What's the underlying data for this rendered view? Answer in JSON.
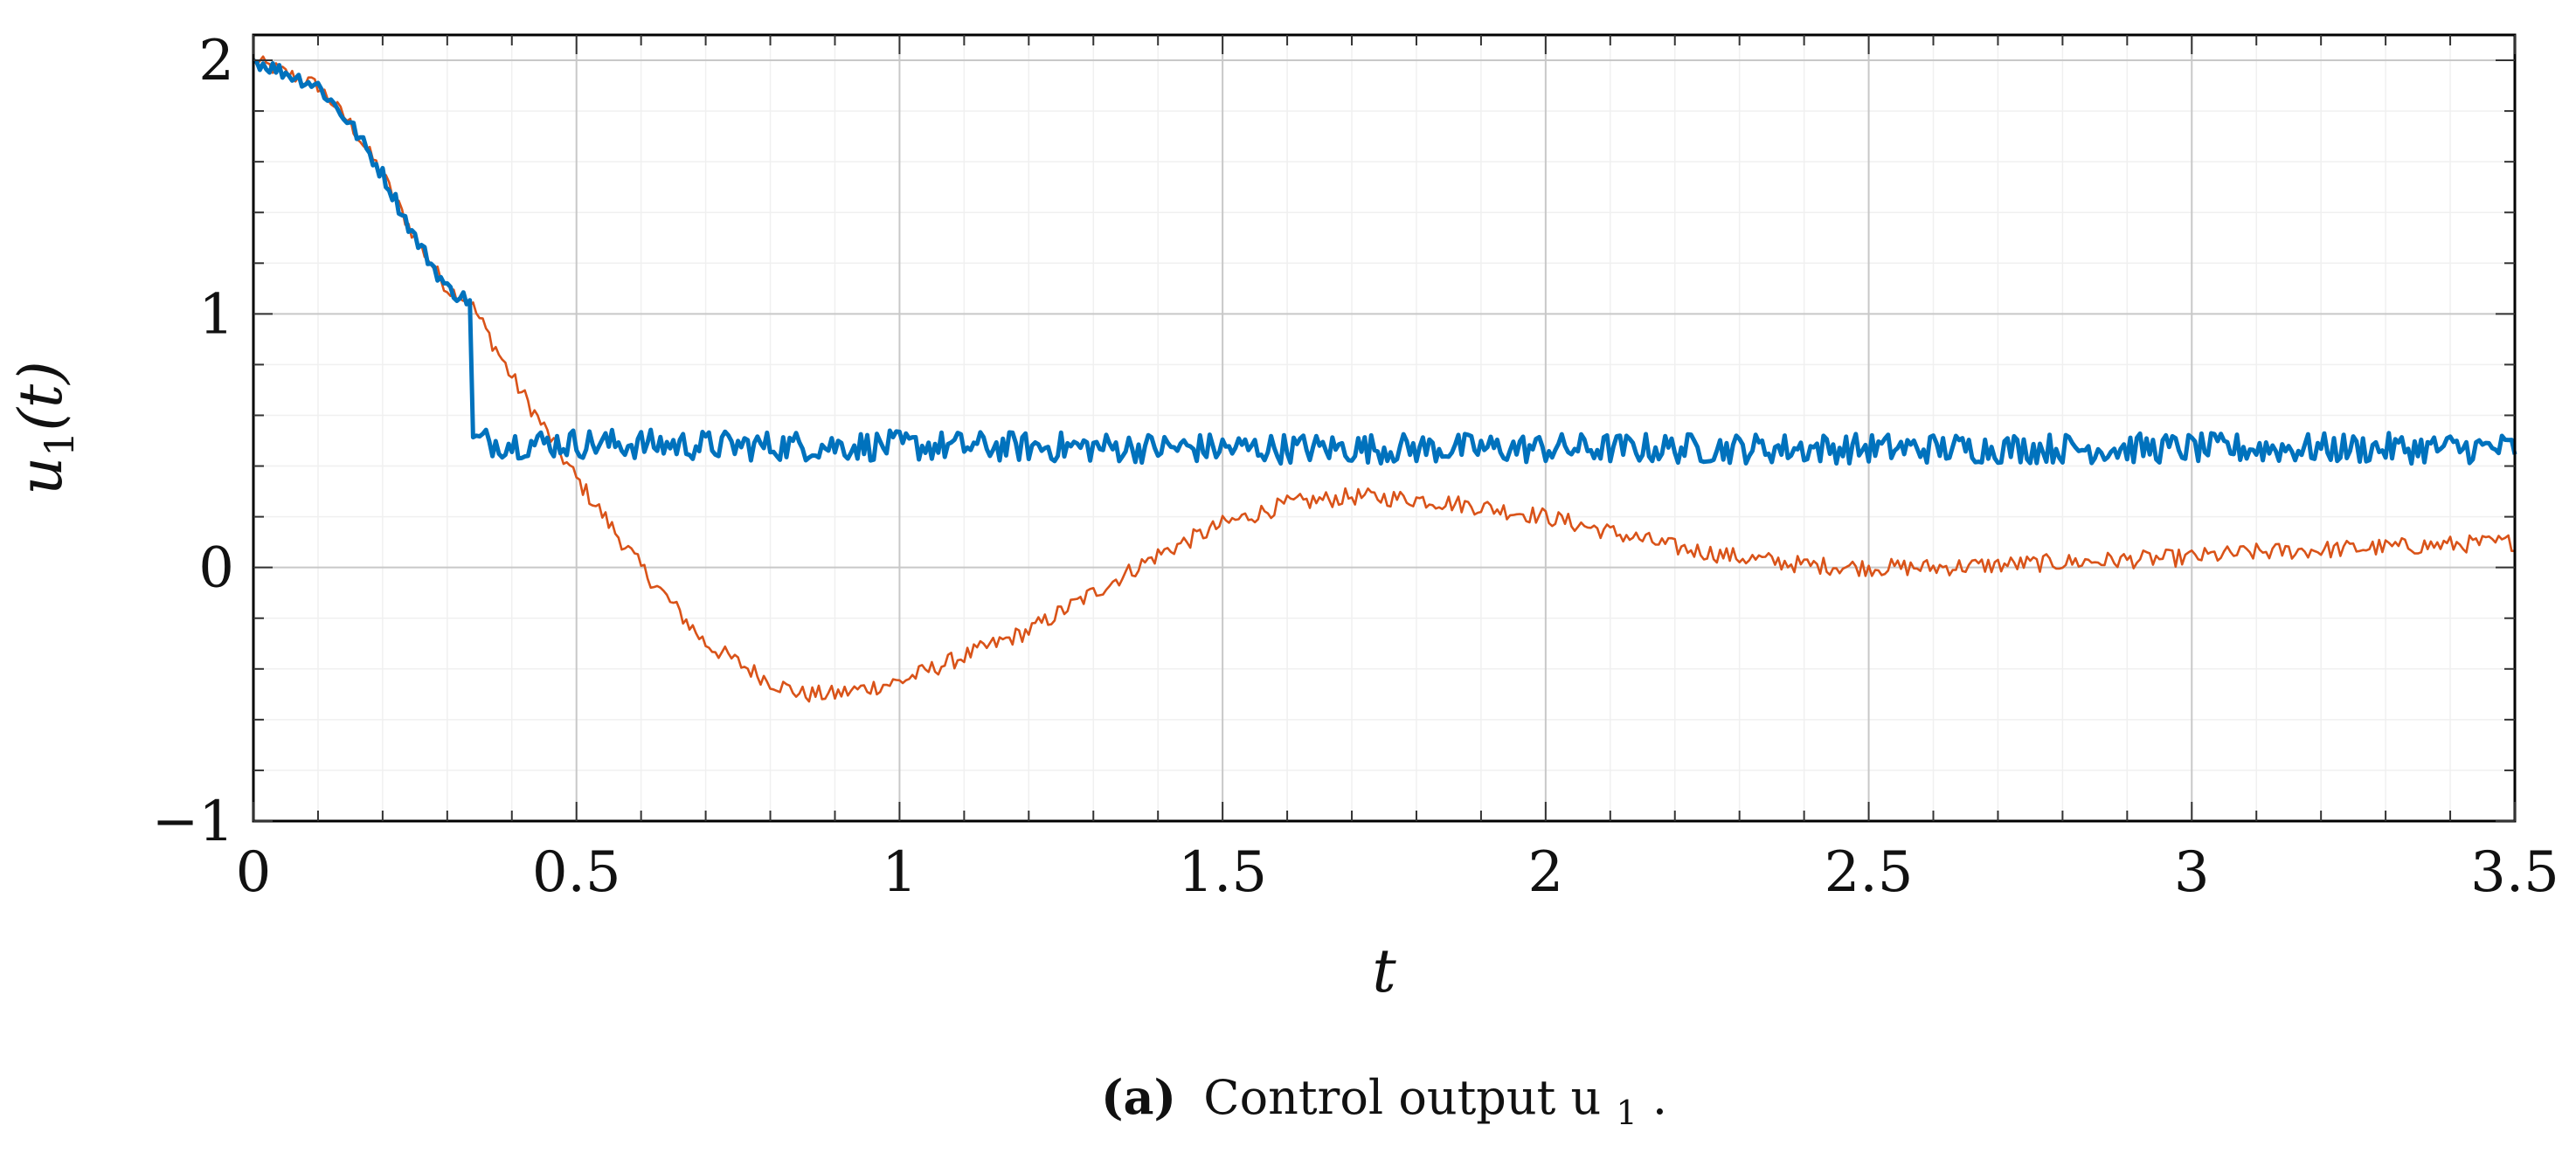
{
  "chart_data": {
    "type": "line",
    "title": "",
    "xlabel": "t",
    "ylabel": "u1(t)",
    "xlim": [
      0,
      3.5
    ],
    "ylim": [
      -1,
      2.1
    ],
    "x_ticks": [
      0,
      0.5,
      1,
      1.5,
      2,
      2.5,
      3,
      3.5
    ],
    "x_tick_labels": [
      "0",
      "0.5",
      "1",
      "1.5",
      "2",
      "2.5",
      "3",
      "3.5"
    ],
    "y_ticks": [
      -1,
      0,
      1,
      2
    ],
    "y_tick_labels": [
      "−1",
      "0",
      "1",
      "2"
    ],
    "grid": true,
    "series": [
      {
        "name": "u1 (blue)",
        "color": "#0072BD",
        "x": [
          0,
          0.05,
          0.1,
          0.15,
          0.2,
          0.25,
          0.3,
          0.335,
          0.34,
          0.4,
          0.5,
          0.75,
          1.0,
          1.5,
          2.0,
          2.5,
          3.0,
          3.5
        ],
        "y": [
          2.0,
          1.95,
          1.9,
          1.75,
          1.55,
          1.3,
          1.1,
          1.05,
          0.5,
          0.49,
          0.49,
          0.48,
          0.48,
          0.47,
          0.47,
          0.47,
          0.47,
          0.47
        ]
      },
      {
        "name": "u1 (orange)",
        "color": "#D95319",
        "x": [
          0,
          0.05,
          0.1,
          0.15,
          0.2,
          0.25,
          0.3,
          0.335,
          0.4,
          0.5,
          0.6,
          0.7,
          0.8,
          0.85,
          0.9,
          1.0,
          1.1,
          1.2,
          1.3,
          1.4,
          1.5,
          1.6,
          1.7,
          1.8,
          1.9,
          2.0,
          2.1,
          2.2,
          2.3,
          2.4,
          2.5,
          2.6,
          2.7,
          2.8,
          2.9,
          3.0,
          3.1,
          3.2,
          3.3,
          3.4,
          3.5
        ],
        "y": [
          2.0,
          1.95,
          1.9,
          1.75,
          1.55,
          1.3,
          1.1,
          1.05,
          0.75,
          0.35,
          0.0,
          -0.3,
          -0.45,
          -0.5,
          -0.5,
          -0.45,
          -0.35,
          -0.25,
          -0.1,
          0.05,
          0.17,
          0.25,
          0.28,
          0.27,
          0.24,
          0.2,
          0.14,
          0.08,
          0.04,
          0.01,
          0.0,
          0.0,
          0.01,
          0.02,
          0.03,
          0.04,
          0.06,
          0.07,
          0.08,
          0.09,
          0.1
        ]
      }
    ]
  },
  "caption": {
    "label": "(a)",
    "text": "Control output u",
    "subscript": "1",
    "end": "."
  }
}
